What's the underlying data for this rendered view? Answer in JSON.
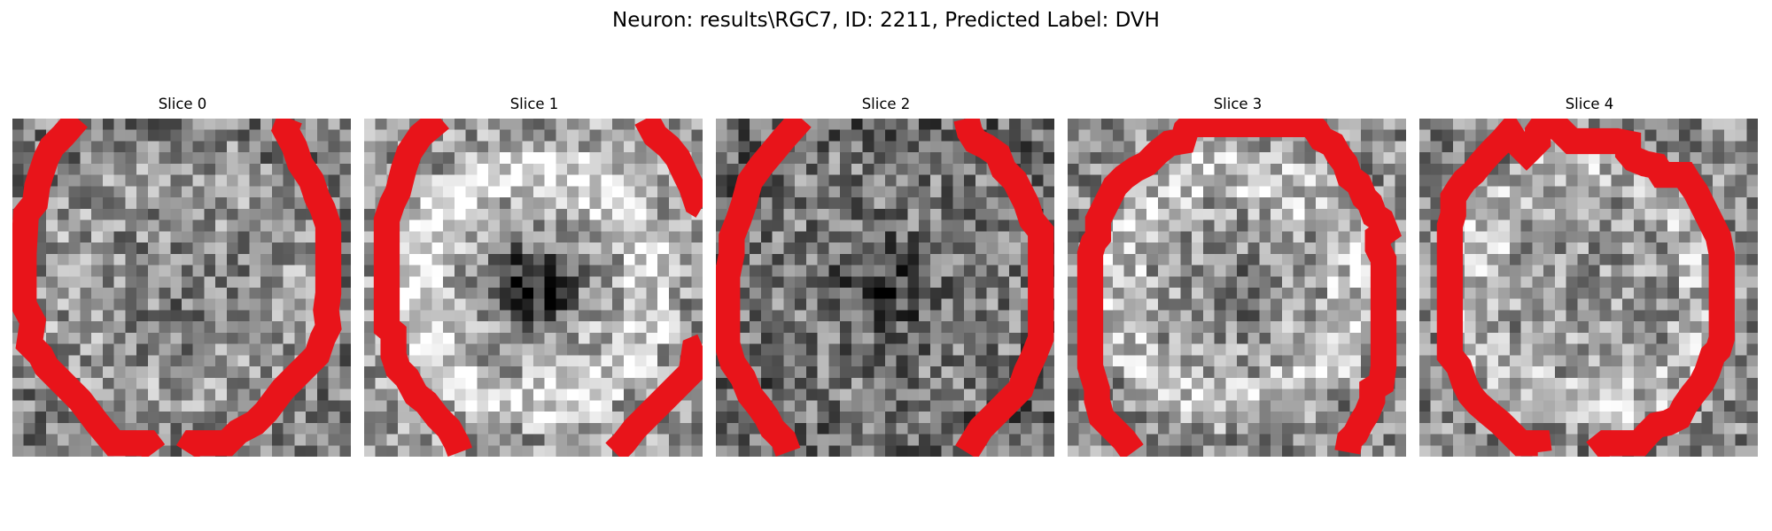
{
  "figure": {
    "title": "Neuron: results\\RGC7, ID: 2211, Predicted Label: DVH",
    "contour_color": "#e8141a",
    "colormap": "gray",
    "panels": [
      {
        "title": "Slice 0",
        "mean": 0.55,
        "center_dark": 0.05,
        "ring": 0.05
      },
      {
        "title": "Slice 1",
        "mean": 0.66,
        "center_dark": 0.4,
        "ring": 0.18
      },
      {
        "title": "Slice 2",
        "mean": 0.46,
        "center_dark": 0.16,
        "ring": 0.02
      },
      {
        "title": "Slice 3",
        "mean": 0.62,
        "center_dark": 0.12,
        "ring": 0.14
      },
      {
        "title": "Slice 4",
        "mean": 0.6,
        "center_dark": 0.02,
        "ring": 0.12
      }
    ]
  }
}
